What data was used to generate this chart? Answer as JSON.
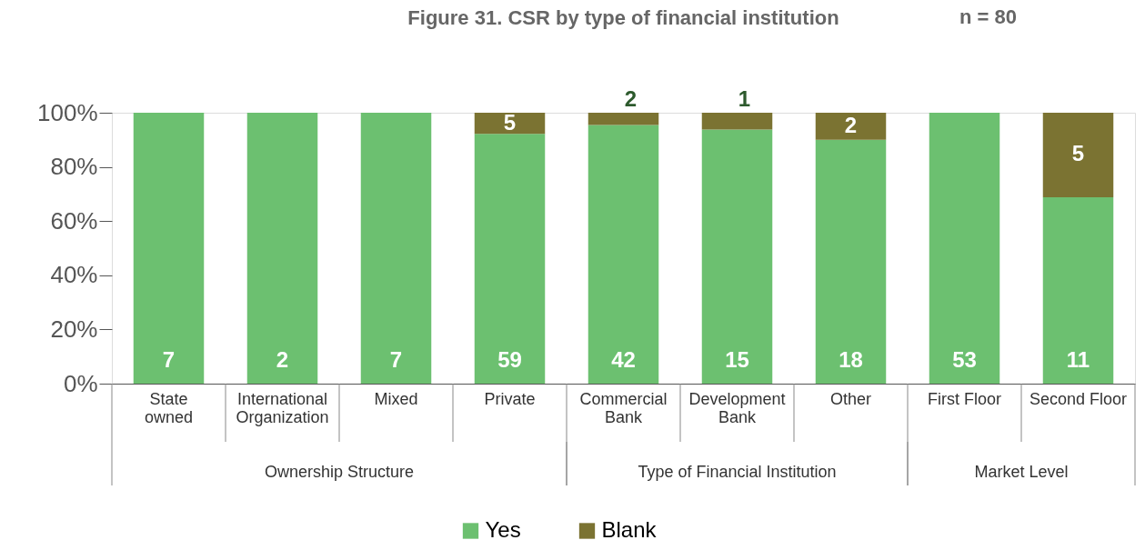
{
  "chart_data": {
    "type": "bar",
    "title": "Figure 31. CSR by type of financial institution",
    "stacked": true,
    "categories": [
      "State\nowned",
      "International\nOrganization",
      "Mixed",
      "Private",
      "Commercial\nBank",
      "Development\nBank",
      "Other",
      "First Floor",
      "Second Floor"
    ],
    "series": [
      {
        "name": "Yes",
        "color": "#6cc070",
        "values": [
          100,
          100,
          100,
          92.2,
          95.5,
          93.8,
          90,
          100,
          68.8
        ]
      },
      {
        "name": "Blank",
        "color": "#7b7332",
        "values": [
          0,
          0,
          0,
          7.8,
          4.5,
          6.2,
          10,
          0,
          31.2
        ]
      }
    ],
    "ylim": [
      0,
      100
    ],
    "yticks": [
      {
        "value": 0,
        "label": "0%"
      },
      {
        "value": 20,
        "label": "20%"
      },
      {
        "value": 40,
        "label": "40%"
      },
      {
        "value": 60,
        "label": "60%"
      },
      {
        "value": 80,
        "label": "80%"
      },
      {
        "value": 100,
        "label": "100%"
      }
    ],
    "grid": false,
    "legend": "bottom",
    "annotations": [
      "n = 80",
      "Ownership Structure",
      "Type of Financial Institution",
      "Market Level",
      "7",
      "2",
      "7",
      "59",
      "42",
      "15",
      "18",
      "53",
      "11",
      {
        "text": "5",
        "x": "Private",
        "y": 100
      },
      {
        "text": "2",
        "x": "Commercial\nBank",
        "y": 100
      },
      {
        "text": "1",
        "x": "Development\nBank",
        "y": 100
      },
      {
        "text": "2",
        "x": "Other",
        "y": 100
      },
      {
        "text": "5",
        "x": "Second Floor",
        "y": 100
      }
    ]
  }
}
